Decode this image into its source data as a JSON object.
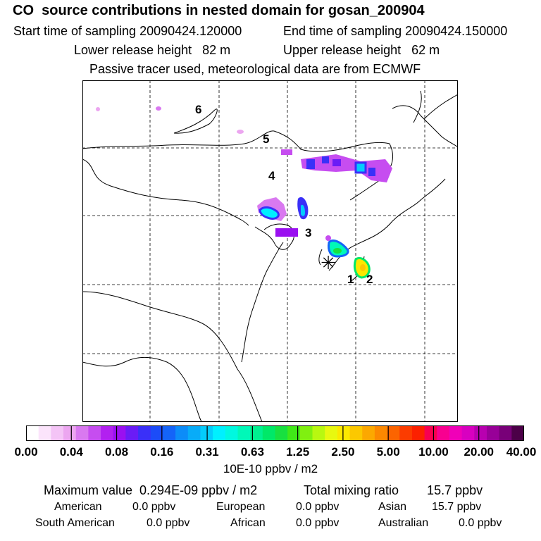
{
  "header": {
    "title": "CO  source contributions in nested domain for gosan_200904",
    "start_time": "Start time of sampling 20090424.120000",
    "end_time": "End time of sampling 20090424.150000",
    "lower_release": "Lower release height   82 m",
    "upper_release": "Upper release height   62 m",
    "tracer_note": "Passive tracer used, meteorological data are from ECMWF"
  },
  "map": {
    "region_labels": [
      "6",
      "5",
      "4",
      "3",
      "1",
      "2"
    ],
    "receptor_symbol": "✳"
  },
  "colorbar": {
    "tick_labels": [
      "0.00",
      "0.04",
      "0.08",
      "0.16",
      "0.31",
      "0.63",
      "1.25",
      "2.50",
      "5.00",
      "10.00",
      "20.00",
      "40.00"
    ],
    "colors": [
      "#ffffff",
      "#fbe4fb",
      "#f4c4f6",
      "#eca6f0",
      "#d979f0",
      "#c64df0",
      "#b220f0",
      "#9a10f0",
      "#6a1cf6",
      "#3a30f8",
      "#1c4cf8",
      "#1464f8",
      "#0c8cf8",
      "#08acf8",
      "#04ccfc",
      "#00f0ff",
      "#00f8e0",
      "#00f8b8",
      "#00f090",
      "#00e868",
      "#18e040",
      "#40e818",
      "#80f010",
      "#b8f810",
      "#e8f810",
      "#fce800",
      "#fcc800",
      "#fca800",
      "#fc8800",
      "#fc6400",
      "#fc3c00",
      "#fc2000",
      "#f80050",
      "#f80090",
      "#f000b8",
      "#d800c0",
      "#b800b0",
      "#980098",
      "#780078",
      "#4c0048"
    ],
    "units": "10E-10 ppbv / m2"
  },
  "summary": {
    "maximum": "Maximum value  0.294E-09 ppbv / m2",
    "total": "Total mixing ratio        15.7 ppbv",
    "regions": [
      {
        "name": "American",
        "value": "0.0 ppbv"
      },
      {
        "name": "European",
        "value": "0.0 ppbv"
      },
      {
        "name": "Asian",
        "value": "15.7 ppbv"
      },
      {
        "name": "South American",
        "value": "0.0 ppbv"
      },
      {
        "name": "African",
        "value": "0.0 ppbv"
      },
      {
        "name": "Australian",
        "value": "0.0 ppbv"
      }
    ]
  }
}
